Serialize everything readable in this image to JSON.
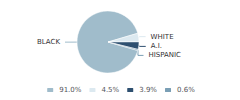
{
  "chart_data": {
    "type": "pie",
    "categories": [
      "BLACK",
      "WHITE",
      "A.I.",
      "HISPANIC"
    ],
    "values": [
      91.0,
      4.5,
      3.9,
      0.6
    ],
    "value_labels": [
      "91.0%",
      "4.5%",
      "3.9%",
      "0.6%"
    ],
    "colors": [
      "#a0bccb",
      "#dce9f0",
      "#2e5070",
      "#7a9fb5"
    ],
    "legend": "bottom"
  }
}
